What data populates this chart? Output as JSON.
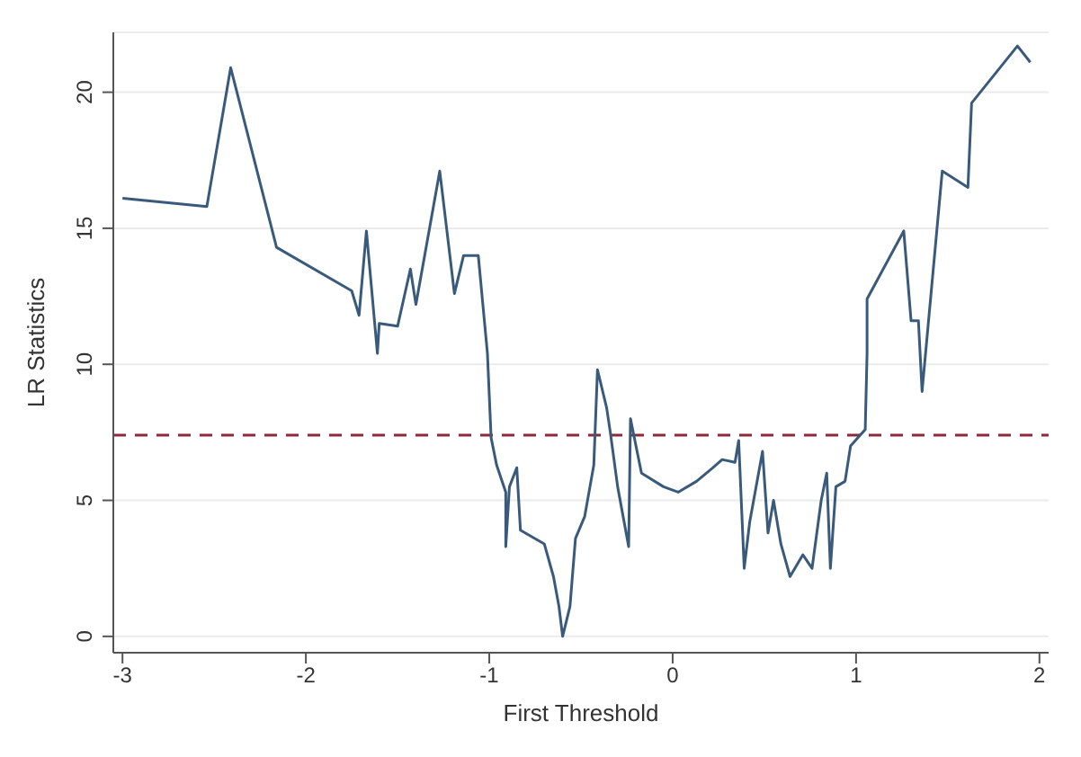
{
  "chart_data": {
    "type": "line",
    "xlabel": "First Threshold",
    "ylabel": "LR Statistics",
    "x": [
      -3,
      -2.54,
      -2.41,
      -2.16,
      -1.75,
      -1.71,
      -1.67,
      -1.61,
      -1.6,
      -1.5,
      -1.43,
      -1.4,
      -1.27,
      -1.19,
      -1.14,
      -1.06,
      -1.01,
      -0.99,
      -0.96,
      -0.91,
      -0.91,
      -0.89,
      -0.85,
      -0.83,
      -0.7,
      -0.65,
      -0.62,
      -0.6,
      -0.56,
      -0.53,
      -0.48,
      -0.43,
      -0.41,
      -0.36,
      -0.34,
      -0.3,
      -0.24,
      -0.23,
      -0.17,
      -0.05,
      0.03,
      0.13,
      0.22,
      0.27,
      0.34,
      0.36,
      0.39,
      0.42,
      0.49,
      0.52,
      0.55,
      0.59,
      0.64,
      0.71,
      0.76,
      0.81,
      0.84,
      0.86,
      0.89,
      0.94,
      0.97,
      1.05,
      1.06,
      1.06,
      1.26,
      1.3,
      1.34,
      1.36,
      1.47,
      1.61,
      1.63,
      1.88,
      1.95
    ],
    "series": [
      {
        "color": "#3a5a7c",
        "values": [
          16.1,
          15.8,
          20.9,
          14.3,
          12.7,
          11.8,
          14.9,
          10.4,
          11.5,
          11.4,
          13.5,
          12.2,
          17.1,
          12.6,
          14,
          14,
          10.4,
          7.3,
          6.3,
          5.3,
          3.3,
          5.5,
          6.2,
          3.9,
          3.4,
          2.2,
          1.1,
          0,
          1.1,
          3.6,
          4.4,
          6.3,
          9.8,
          8.4,
          7.5,
          5.5,
          3.3,
          8,
          6,
          5.5,
          5.3,
          5.7,
          6.2,
          6.5,
          6.4,
          7.2,
          2.5,
          4.2,
          6.8,
          3.8,
          5,
          3.4,
          2.2,
          3,
          2.5,
          5,
          6,
          2.5,
          5.5,
          5.7,
          7,
          7.6,
          10.4,
          12.4,
          14.9,
          11.6,
          11.6,
          9,
          17.1,
          16.5,
          19.6,
          21.7,
          21.1
        ]
      }
    ],
    "xlim": [
      -3.05,
      2.05
    ],
    "xticks": [
      -3,
      -2,
      -1,
      0,
      1,
      2
    ],
    "ylim": [
      -0.6,
      22.2
    ],
    "yticks": [
      0,
      5,
      10,
      15,
      20
    ],
    "grid": "y",
    "marker": "none",
    "line_style": "solid",
    "ref_lines": [
      {
        "axis": "y",
        "value": 7.4,
        "color": "#8b2a3a",
        "line_style": "dashed"
      }
    ]
  }
}
